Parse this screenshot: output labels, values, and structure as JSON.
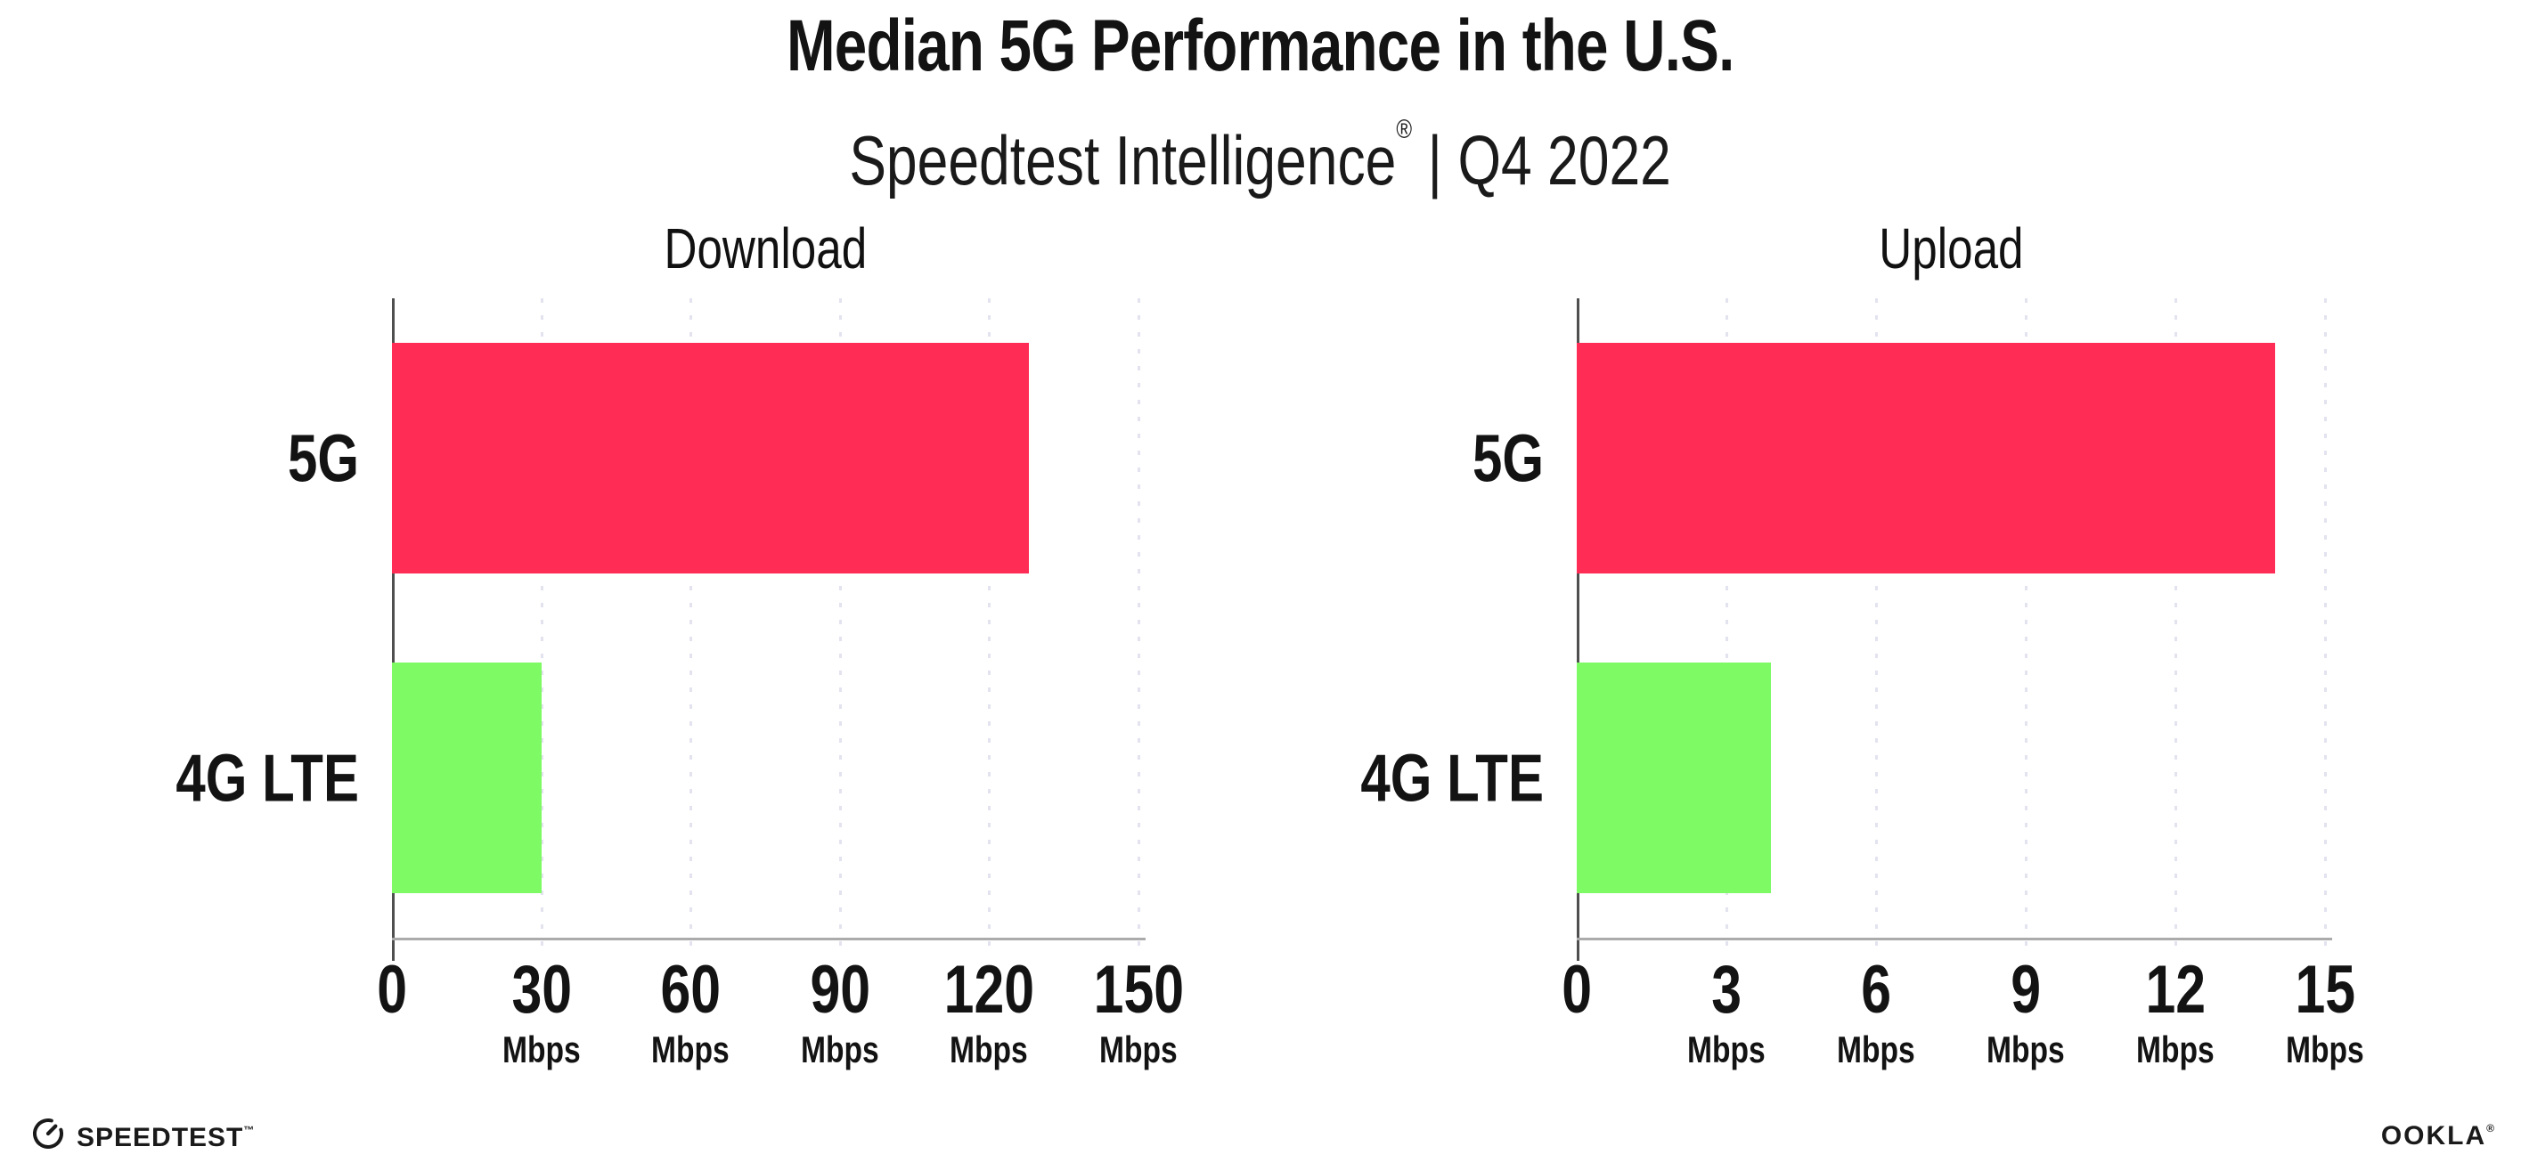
{
  "header": {
    "title": "Median 5G Performance in the U.S.",
    "subtitle_brand": "Speedtest Intelligence",
    "subtitle_reg": "®",
    "subtitle_separator": "|",
    "subtitle_period": "Q4 2022"
  },
  "chart_data": [
    {
      "type": "bar",
      "orientation": "horizontal",
      "title": "Download",
      "categories": [
        "5G",
        "4G LTE"
      ],
      "values": [
        128,
        30
      ],
      "unit": "Mbps",
      "xlim": [
        0,
        150
      ],
      "xticks": [
        0,
        30,
        60,
        90,
        120,
        150
      ],
      "grid": "vertical-dotted",
      "legend": "none"
    },
    {
      "type": "bar",
      "orientation": "horizontal",
      "title": "Upload",
      "categories": [
        "5G",
        "4G LTE"
      ],
      "values": [
        14,
        3.9
      ],
      "unit": "Mbps",
      "xlim": [
        0,
        15
      ],
      "xticks": [
        0,
        3,
        6,
        9,
        12,
        15
      ],
      "grid": "vertical-dotted",
      "legend": "none"
    }
  ],
  "style": {
    "bar_colors": {
      "5G": "#ff2d55",
      "4G LTE": "#7dfa64"
    },
    "gridline_color": "#e3e3f0",
    "axis_color": "#ababab",
    "spine_color": "#4f4f4f",
    "text_color": "#131313"
  },
  "icons": {
    "speedtest_logo": "speedtest-gauge-icon"
  },
  "footer": {
    "speedtest_label": "SPEEDTEST",
    "speedtest_mark": "™",
    "ookla_label": "OOKLA",
    "ookla_mark": "®"
  }
}
